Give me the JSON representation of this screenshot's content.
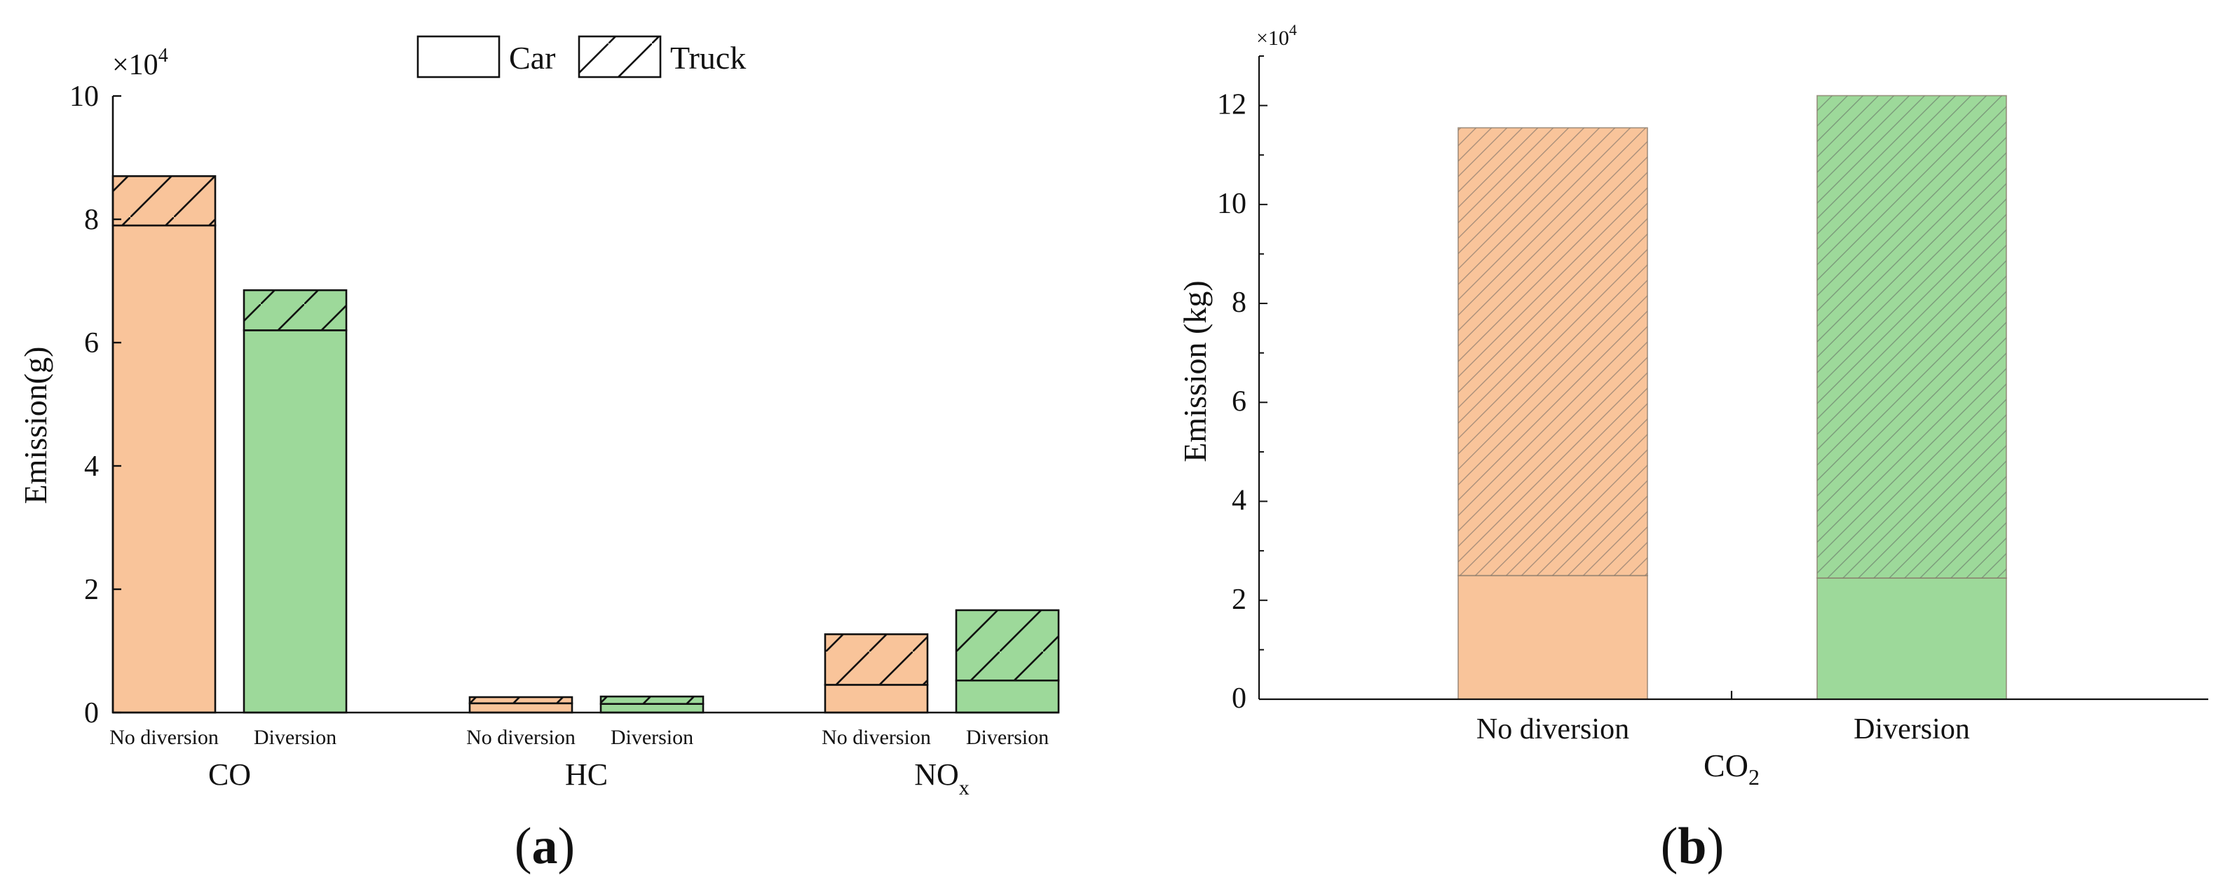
{
  "colors": {
    "no_diversion": "#f9c49a",
    "diversion": "#9dd99a",
    "stroke": "#111111"
  },
  "legend": {
    "car_label": "Car",
    "truck_label": "Truck"
  },
  "panel_a": {
    "label_open": "(",
    "label_letter": "a",
    "label_close": ")",
    "multiplier_base": "×10",
    "multiplier_exp": "4"
  },
  "panel_b": {
    "label_open": "(",
    "label_letter": "b",
    "label_close": ")",
    "multiplier_base": "×10",
    "multiplier_exp": "4"
  },
  "chart_data": [
    {
      "type": "bar",
      "stacked": true,
      "panel": "a",
      "ylabel": "Emission(g)",
      "y_multiplier": "×10^4",
      "ylim": [
        0,
        10
      ],
      "yticks": [
        "0",
        "2",
        "4",
        "6",
        "8",
        "10"
      ],
      "groups": [
        {
          "name": "CO",
          "sub": ""
        },
        {
          "name": "HC",
          "sub": ""
        },
        {
          "name": "NO",
          "sub": "x"
        }
      ],
      "categories": [
        "No diversion",
        "Diversion"
      ],
      "series": [
        {
          "name": "Car",
          "pattern": "solid",
          "values": [
            [
              7.9,
              6.2
            ],
            [
              0.15,
              0.14
            ],
            [
              0.45,
              0.52
            ]
          ]
        },
        {
          "name": "Truck",
          "pattern": "hatched",
          "values": [
            [
              0.8,
              0.65
            ],
            [
              0.1,
              0.12
            ],
            [
              0.82,
              1.14
            ]
          ]
        }
      ],
      "grid": false,
      "legend_position": "top-center"
    },
    {
      "type": "bar",
      "stacked": true,
      "panel": "b",
      "ylabel": "Emission (kg)",
      "y_multiplier": "×10^4",
      "ylim": [
        0,
        13
      ],
      "yticks": [
        "0",
        "2",
        "4",
        "6",
        "8",
        "10",
        "12"
      ],
      "xlabel": "CO",
      "xlabel_sub": "2",
      "categories": [
        "No diversion",
        "Diversion"
      ],
      "series": [
        {
          "name": "Car",
          "pattern": "solid",
          "values": [
            2.5,
            2.45
          ]
        },
        {
          "name": "Truck",
          "pattern": "hatched",
          "values": [
            9.05,
            9.75
          ]
        }
      ],
      "grid": false
    }
  ]
}
